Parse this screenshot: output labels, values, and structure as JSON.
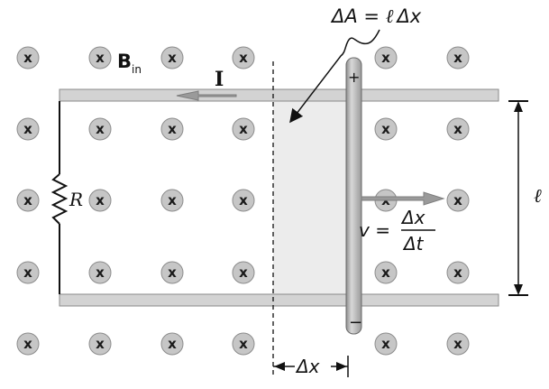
{
  "labels": {
    "area_eq_lhs": "ΔA = ",
    "area_eq_l": "ℓ",
    "area_eq_rhs": "Δx",
    "field_main": "B",
    "field_sub": "in",
    "current": "I",
    "resistor": "R",
    "length": "ℓ",
    "velocity_lhs": "v =",
    "velocity_num": "Δx",
    "velocity_den": "Δt",
    "displacement": "Δx",
    "plus": "+",
    "minus": "−",
    "field_symbol": "x"
  },
  "field_grid": {
    "rows": 5,
    "cols": 7,
    "omitted": [
      [
        0,
        4
      ],
      [
        1,
        4
      ],
      [
        2,
        4
      ],
      [
        3,
        4
      ],
      [
        4,
        4
      ]
    ]
  },
  "colors": {
    "rail_fill": "#d3d3d3",
    "rail_edge": "#8a8a8a",
    "field_fill": "#c6c6c6",
    "field_edge": "#8c8c8c",
    "shaded_area": "#ececec",
    "rod_fill": "#bdbdbd",
    "arrow_gray": "#9a9a9a"
  }
}
